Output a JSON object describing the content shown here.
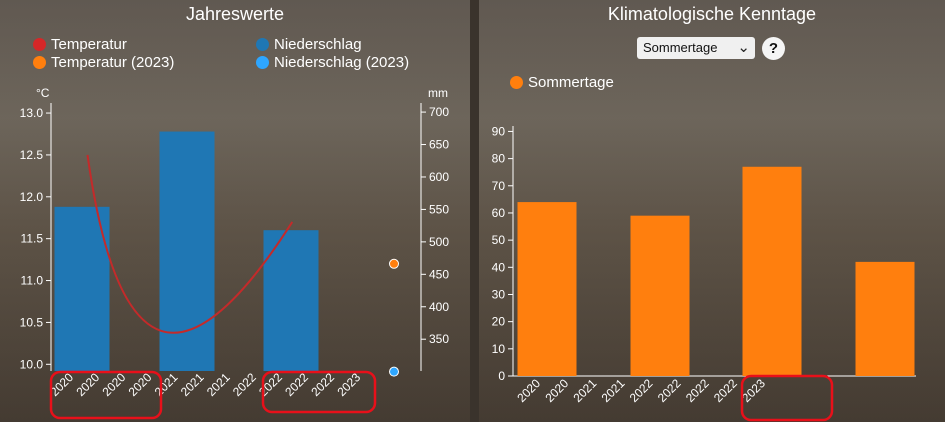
{
  "left_panel": {
    "title": "Jahreswerte",
    "legend": [
      {
        "label": "Temperatur",
        "color": "#d62728"
      },
      {
        "label": "Niederschlag",
        "color": "#1f77b4"
      },
      {
        "label": "Temperatur (2023)",
        "color": "#ff7f0e"
      },
      {
        "label": "Niederschlag (2023)",
        "color": "#2ea6ff"
      }
    ],
    "y_left_unit": "°C",
    "y_right_unit": "mm"
  },
  "right_panel": {
    "title": "Klimatologische Kenntage",
    "select_value": "Sommertage",
    "help_label": "?",
    "legend": [
      {
        "label": "Sommertage",
        "color": "#ff7f0e"
      }
    ]
  },
  "chart_data": [
    {
      "type": "bar",
      "x_tick_labels": [
        "2020",
        "2020",
        "2020",
        "2020",
        "2021",
        "2021",
        "2021",
        "2022",
        "2022",
        "2022",
        "2022",
        "2023"
      ],
      "series": [
        {
          "name": "Niederschlag",
          "axis": "right",
          "categories": [
            "2020",
            "2021",
            "2022"
          ],
          "values": [
            554,
            670,
            518
          ]
        },
        {
          "name": "Temperatur",
          "axis": "left",
          "type": "line",
          "x": [
            0.3,
            1.0,
            2.25
          ],
          "values": [
            12.5,
            10.4,
            11.7
          ]
        },
        {
          "name": "Temperatur (2023)",
          "axis": "left",
          "type": "scatter",
          "categories": [
            "2023"
          ],
          "values": [
            11.2
          ]
        },
        {
          "name": "Niederschlag (2023)",
          "axis": "right",
          "type": "scatter",
          "categories": [
            "2023"
          ],
          "values": [
            300
          ]
        }
      ],
      "y_left": {
        "ticks": [
          10.0,
          10.5,
          11.0,
          11.5,
          12.0,
          12.5,
          13.0
        ],
        "range": [
          9.92,
          13.12
        ]
      },
      "y_right": {
        "ticks": [
          350,
          400,
          450,
          500,
          550,
          600,
          650,
          700
        ],
        "range": [
          301,
          714
        ]
      }
    },
    {
      "type": "bar",
      "x_tick_labels": [
        "2020",
        "2020",
        "2021",
        "2021",
        "2022",
        "2022",
        "2022",
        "2022",
        "2023"
      ],
      "series": [
        {
          "name": "Sommertage",
          "categories": [
            "2020",
            "2021",
            "2022",
            "2023"
          ],
          "values": [
            64,
            59,
            77,
            42
          ]
        }
      ],
      "y": {
        "ticks": [
          0,
          10,
          20,
          30,
          40,
          50,
          60,
          70,
          80,
          90
        ],
        "range": [
          0,
          92
        ]
      }
    }
  ]
}
